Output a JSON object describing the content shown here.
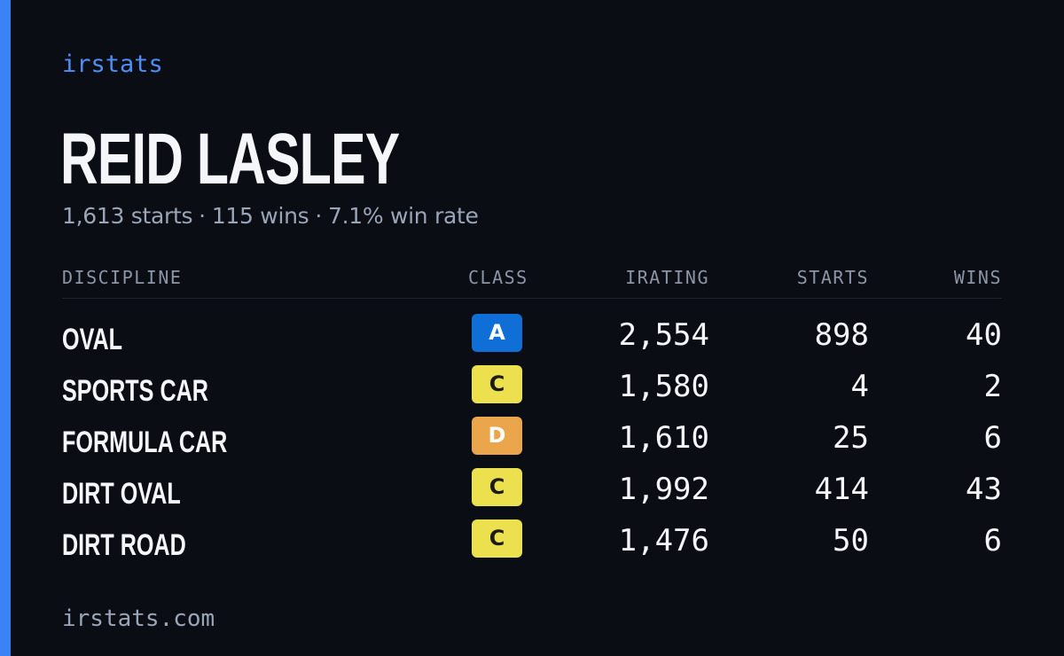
{
  "brand": "irstats",
  "driver": {
    "name": "REID LASLEY",
    "summary": {
      "starts": "1,613 starts",
      "wins": "115 wins",
      "win_rate": "7.1% win rate",
      "separator": "·"
    }
  },
  "table": {
    "headers": {
      "discipline": "DISCIPLINE",
      "class": "CLASS",
      "irating": "IRATING",
      "starts": "STARTS",
      "wins": "WINS"
    },
    "rows": [
      {
        "discipline": "OVAL",
        "class": "A",
        "irating": "2,554",
        "starts": "898",
        "wins": "40"
      },
      {
        "discipline": "SPORTS CAR",
        "class": "C",
        "irating": "1,580",
        "starts": "4",
        "wins": "2"
      },
      {
        "discipline": "FORMULA CAR",
        "class": "D",
        "irating": "1,610",
        "starts": "25",
        "wins": "6"
      },
      {
        "discipline": "DIRT OVAL",
        "class": "C",
        "irating": "1,992",
        "starts": "414",
        "wins": "43"
      },
      {
        "discipline": "DIRT ROAD",
        "class": "C",
        "irating": "1,476",
        "starts": "50",
        "wins": "6"
      }
    ]
  },
  "class_colors": {
    "A": {
      "bg": "#0f6fd6",
      "fg": "#ffffff"
    },
    "C": {
      "bg": "#ede04f",
      "fg": "#1b1b1b"
    },
    "D": {
      "bg": "#eba54a",
      "fg": "#ffffff"
    }
  },
  "colors": {
    "accent": "#3b82f6",
    "background": "#0a0d14"
  },
  "footer": {
    "url": "irstats.com"
  }
}
